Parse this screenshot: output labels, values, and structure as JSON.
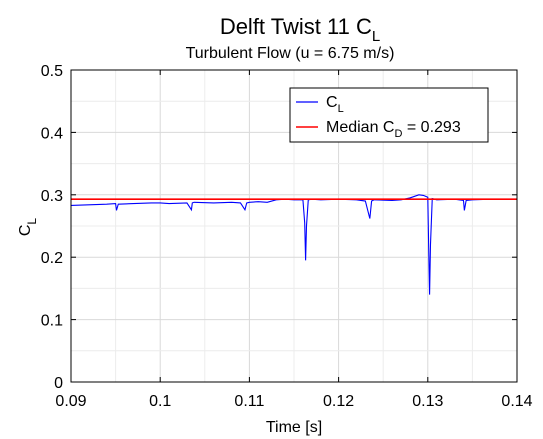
{
  "chart_data": {
    "type": "line",
    "title": "Delft Twist 11 C",
    "title_sub": "L",
    "subtitle": "Turbulent Flow (u = 6.75 m/s)",
    "xlabel": "Time [s]",
    "ylabel": "C",
    "ylabel_sub": "L",
    "xlim": [
      0.09,
      0.14
    ],
    "ylim": [
      0,
      0.5
    ],
    "xticks": [
      0.09,
      0.1,
      0.11,
      0.12,
      0.13,
      0.14
    ],
    "xtick_labels": [
      "0.09",
      "0.1",
      "0.11",
      "0.12",
      "0.13",
      "0.14"
    ],
    "yticks": [
      0,
      0.1,
      0.2,
      0.3,
      0.4,
      0.5
    ],
    "ytick_labels": [
      "0",
      "0.1",
      "0.2",
      "0.3",
      "0.4",
      "0.5"
    ],
    "grid": true,
    "minor_grid": true,
    "legend_position": "top-right",
    "series": [
      {
        "name": "C",
        "name_sub": "L",
        "color": "#0000ff",
        "x": [
          0.09,
          0.092,
          0.094,
          0.095,
          0.0951,
          0.0953,
          0.097,
          0.099,
          0.1,
          0.101,
          0.103,
          0.1035,
          0.1036,
          0.1038,
          0.106,
          0.108,
          0.109,
          0.1095,
          0.1097,
          0.11,
          0.111,
          0.112,
          0.113,
          0.114,
          0.115,
          0.116,
          0.1162,
          0.1163,
          0.1164,
          0.1166,
          0.117,
          0.118,
          0.12,
          0.122,
          0.123,
          0.1235,
          0.1237,
          0.124,
          0.126,
          0.127,
          0.128,
          0.129,
          0.1295,
          0.13,
          0.1301,
          0.1302,
          0.1303,
          0.1305,
          0.131,
          0.133,
          0.134,
          0.1341,
          0.1343,
          0.135,
          0.137,
          0.14
        ],
        "y": [
          0.283,
          0.284,
          0.285,
          0.286,
          0.275,
          0.285,
          0.286,
          0.287,
          0.287,
          0.286,
          0.287,
          0.276,
          0.287,
          0.288,
          0.287,
          0.288,
          0.287,
          0.276,
          0.287,
          0.288,
          0.289,
          0.288,
          0.292,
          0.293,
          0.292,
          0.292,
          0.255,
          0.195,
          0.25,
          0.292,
          0.293,
          0.292,
          0.293,
          0.292,
          0.29,
          0.262,
          0.29,
          0.292,
          0.291,
          0.292,
          0.295,
          0.3,
          0.299,
          0.296,
          0.215,
          0.14,
          0.22,
          0.294,
          0.292,
          0.293,
          0.291,
          0.275,
          0.291,
          0.292,
          0.293,
          0.293
        ]
      },
      {
        "name": "Median C",
        "name_sub": "D",
        "name_suffix": " = 0.293",
        "color": "#ff0000",
        "x": [
          0.09,
          0.14
        ],
        "y": [
          0.293,
          0.293
        ]
      }
    ]
  }
}
